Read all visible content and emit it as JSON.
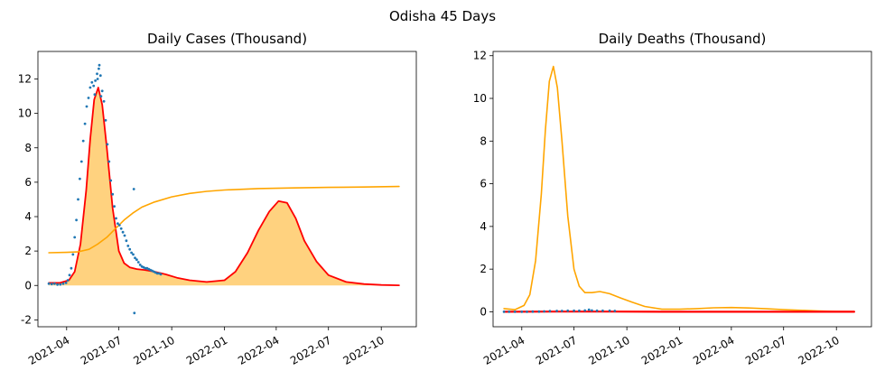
{
  "figure": {
    "suptitle": "Odisha 45 Days"
  },
  "chart_data": [
    {
      "type": "line",
      "title": "Daily Cases (Thousand)",
      "xlabel": "",
      "ylabel": "",
      "ylim": [
        -2.4,
        13.6
      ],
      "xlim": [
        "2021-02-10",
        "2022-12-01"
      ],
      "grid": false,
      "x_ticks": [
        "2021-04",
        "2021-07",
        "2021-10",
        "2022-01",
        "2022-04",
        "2022-07",
        "2022-10"
      ],
      "y_ticks": [
        -2,
        0,
        2,
        4,
        6,
        8,
        10,
        12
      ],
      "colors": {
        "model": "#ff0000",
        "fill": "#ffd27f",
        "cumulative": "#ffa500",
        "observed": "#1f77b4"
      },
      "series": [
        {
          "role": "model",
          "style": "red line with orange filled area",
          "x": [
            "2021-03-01",
            "2021-03-20",
            "2021-04-05",
            "2021-04-15",
            "2021-04-25",
            "2021-05-05",
            "2021-05-12",
            "2021-05-19",
            "2021-05-26",
            "2021-06-02",
            "2021-06-10",
            "2021-06-20",
            "2021-07-01",
            "2021-07-10",
            "2021-07-20",
            "2021-08-01",
            "2021-08-15",
            "2021-09-01",
            "2021-09-20",
            "2021-10-10",
            "2021-11-01",
            "2021-12-01",
            "2022-01-01",
            "2022-01-20",
            "2022-02-10",
            "2022-03-01",
            "2022-03-20",
            "2022-04-05",
            "2022-04-20",
            "2022-05-05",
            "2022-05-20",
            "2022-06-10",
            "2022-07-01",
            "2022-08-01",
            "2022-09-01",
            "2022-10-01",
            "2022-11-01"
          ],
          "y": [
            0.15,
            0.15,
            0.3,
            0.8,
            2.4,
            5.5,
            8.5,
            10.8,
            11.5,
            10.5,
            8.0,
            4.5,
            2.0,
            1.3,
            1.05,
            0.95,
            0.9,
            0.8,
            0.65,
            0.45,
            0.3,
            0.2,
            0.3,
            0.8,
            1.9,
            3.2,
            4.3,
            4.9,
            4.8,
            3.9,
            2.6,
            1.4,
            0.6,
            0.2,
            0.08,
            0.03,
            0.01
          ]
        },
        {
          "role": "cumulative",
          "style": "orange line",
          "x": [
            "2021-03-01",
            "2021-04-01",
            "2021-04-20",
            "2021-05-10",
            "2021-05-25",
            "2021-06-10",
            "2021-06-25",
            "2021-07-10",
            "2021-07-25",
            "2021-08-10",
            "2021-09-01",
            "2021-10-01",
            "2021-11-01",
            "2021-12-01",
            "2022-01-01",
            "2022-03-01",
            "2022-05-01",
            "2022-07-01",
            "2022-09-01",
            "2022-11-01"
          ],
          "y": [
            1.9,
            1.92,
            1.95,
            2.1,
            2.4,
            2.8,
            3.3,
            3.8,
            4.2,
            4.55,
            4.85,
            5.15,
            5.35,
            5.47,
            5.55,
            5.63,
            5.67,
            5.7,
            5.72,
            5.75
          ]
        },
        {
          "role": "observed",
          "style": "blue scatter",
          "x": [
            "2021-03-01",
            "2021-03-06",
            "2021-03-11",
            "2021-03-16",
            "2021-03-21",
            "2021-03-26",
            "2021-03-31",
            "2021-04-03",
            "2021-04-06",
            "2021-04-09",
            "2021-04-12",
            "2021-04-15",
            "2021-04-18",
            "2021-04-21",
            "2021-04-24",
            "2021-04-27",
            "2021-04-30",
            "2021-05-03",
            "2021-05-06",
            "2021-05-09",
            "2021-05-12",
            "2021-05-15",
            "2021-05-18",
            "2021-05-21",
            "2021-05-24",
            "2021-05-27",
            "2021-05-30",
            "2021-06-02",
            "2021-06-05",
            "2021-06-08",
            "2021-06-11",
            "2021-06-14",
            "2021-06-17",
            "2021-06-20",
            "2021-06-23",
            "2021-06-26",
            "2021-06-29",
            "2021-07-02",
            "2021-07-05",
            "2021-07-08",
            "2021-07-11",
            "2021-07-14",
            "2021-07-17",
            "2021-07-20",
            "2021-07-23",
            "2021-07-26",
            "2021-07-29",
            "2021-08-01",
            "2021-08-04",
            "2021-08-07",
            "2021-08-10",
            "2021-08-13",
            "2021-08-16",
            "2021-08-19",
            "2021-08-22",
            "2021-08-25",
            "2021-08-28",
            "2021-08-31",
            "2021-09-03",
            "2021-09-06",
            "2021-09-09",
            "2021-09-12",
            "2021-07-27",
            "2021-07-28",
            "2021-05-28",
            "2021-05-31",
            "2021-05-25",
            "2021-05-20"
          ],
          "y": [
            0.1,
            0.08,
            0.1,
            0.05,
            0.06,
            0.1,
            0.15,
            0.3,
            0.6,
            1.0,
            1.8,
            2.8,
            3.8,
            5.0,
            6.2,
            7.2,
            8.4,
            9.4,
            10.4,
            10.9,
            11.5,
            11.8,
            11.6,
            11.9,
            12.3,
            12.6,
            12.2,
            11.3,
            10.7,
            9.6,
            8.2,
            7.2,
            6.1,
            5.3,
            4.6,
            3.9,
            3.6,
            3.5,
            3.3,
            3.1,
            2.9,
            2.6,
            2.3,
            2.1,
            1.9,
            1.8,
            1.6,
            1.5,
            1.35,
            1.2,
            1.1,
            1.05,
            1.0,
            1.0,
            0.95,
            0.9,
            0.85,
            0.8,
            0.75,
            0.7,
            0.7,
            0.65,
            5.6,
            -1.6,
            12.8,
            11.0,
            12.0,
            11.1
          ]
        }
      ]
    },
    {
      "type": "line",
      "title": "Daily Deaths (Thousand)",
      "xlabel": "",
      "ylabel": "",
      "ylim": [
        -0.7,
        12.2
      ],
      "xlim": [
        "2021-02-10",
        "2022-12-01"
      ],
      "grid": false,
      "x_ticks": [
        "2021-04",
        "2021-07",
        "2021-10",
        "2022-01",
        "2022-04",
        "2022-07",
        "2022-10"
      ],
      "y_ticks": [
        0,
        2,
        4,
        6,
        8,
        10,
        12
      ],
      "colors": {
        "model": "#ff0000",
        "cumulative": "#ffa500",
        "observed": "#1f77b4"
      },
      "series": [
        {
          "role": "cumulative",
          "style": "orange line",
          "x": [
            "2021-03-01",
            "2021-03-20",
            "2021-04-05",
            "2021-04-15",
            "2021-04-25",
            "2021-05-05",
            "2021-05-12",
            "2021-05-19",
            "2021-05-26",
            "2021-06-02",
            "2021-06-10",
            "2021-06-20",
            "2021-07-01",
            "2021-07-10",
            "2021-07-20",
            "2021-08-01",
            "2021-08-15",
            "2021-09-01",
            "2021-09-20",
            "2021-10-10",
            "2021-11-01",
            "2021-12-01",
            "2022-01-01",
            "2022-02-01",
            "2022-03-01",
            "2022-04-01",
            "2022-05-01",
            "2022-06-01",
            "2022-07-01",
            "2022-08-01",
            "2022-09-01",
            "2022-10-01",
            "2022-11-01"
          ],
          "y": [
            0.15,
            0.1,
            0.3,
            0.8,
            2.4,
            5.5,
            8.5,
            10.8,
            11.5,
            10.5,
            8.0,
            4.5,
            2.0,
            1.2,
            0.9,
            0.9,
            0.95,
            0.85,
            0.65,
            0.45,
            0.25,
            0.12,
            0.12,
            0.15,
            0.19,
            0.2,
            0.18,
            0.14,
            0.1,
            0.07,
            0.04,
            0.02,
            0.01
          ]
        },
        {
          "role": "model",
          "style": "red line",
          "x": [
            "2021-03-01",
            "2021-06-01",
            "2021-09-01",
            "2021-12-01",
            "2022-03-01",
            "2022-06-01",
            "2022-09-01",
            "2022-11-01"
          ],
          "y": [
            0.0,
            0.01,
            0.01,
            0.0,
            0.0,
            0.0,
            0.0,
            0.0
          ]
        },
        {
          "role": "observed",
          "style": "blue scatter",
          "x": [
            "2021-03-01",
            "2021-03-10",
            "2021-03-20",
            "2021-04-01",
            "2021-04-10",
            "2021-04-20",
            "2021-05-01",
            "2021-05-10",
            "2021-05-20",
            "2021-06-01",
            "2021-06-10",
            "2021-06-20",
            "2021-07-01",
            "2021-07-10",
            "2021-07-20",
            "2021-07-27",
            "2021-08-01",
            "2021-08-10",
            "2021-08-20",
            "2021-09-01",
            "2021-09-10"
          ],
          "y": [
            0.0,
            0.0,
            0.0,
            0.0,
            0.0,
            0.01,
            0.01,
            0.02,
            0.03,
            0.04,
            0.04,
            0.05,
            0.05,
            0.05,
            0.06,
            0.1,
            0.06,
            0.05,
            0.05,
            0.05,
            0.04
          ]
        }
      ]
    }
  ]
}
